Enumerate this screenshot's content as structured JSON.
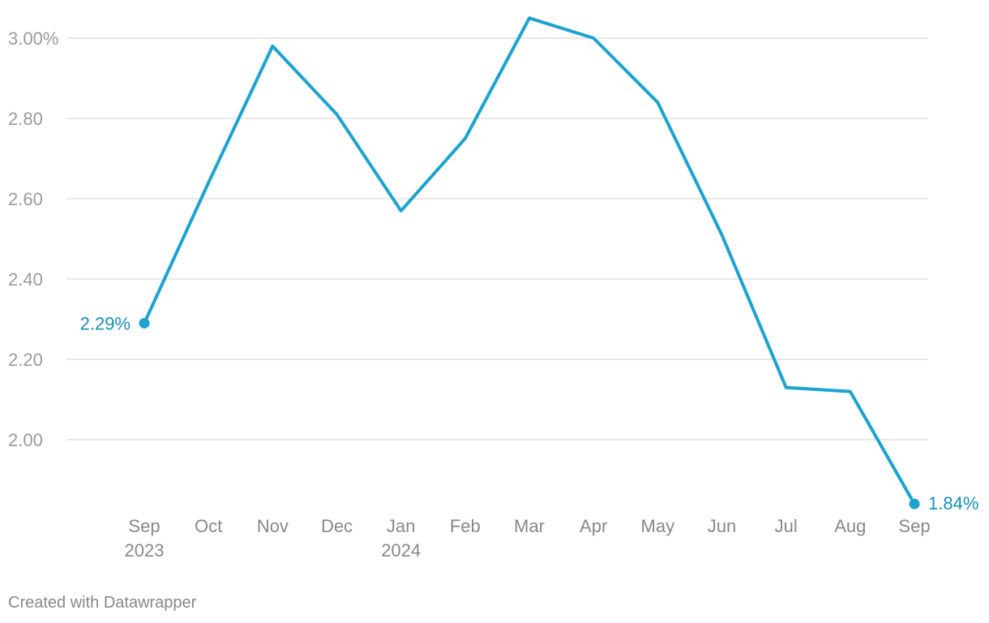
{
  "chart_data": {
    "type": "line",
    "x": [
      "Sep 2023",
      "Oct 2023",
      "Nov 2023",
      "Dec 2023",
      "Jan 2024",
      "Feb 2024",
      "Mar 2024",
      "Apr 2024",
      "May 2024",
      "Jun 2024",
      "Jul 2024",
      "Aug 2024",
      "Sep 2024"
    ],
    "x_tick_labels": [
      {
        "line1": "Sep",
        "line2": "2023"
      },
      {
        "line1": "Oct",
        "line2": ""
      },
      {
        "line1": "Nov",
        "line2": ""
      },
      {
        "line1": "Dec",
        "line2": ""
      },
      {
        "line1": "Jan",
        "line2": "2024"
      },
      {
        "line1": "Feb",
        "line2": ""
      },
      {
        "line1": "Mar",
        "line2": ""
      },
      {
        "line1": "Apr",
        "line2": ""
      },
      {
        "line1": "May",
        "line2": ""
      },
      {
        "line1": "Jun",
        "line2": ""
      },
      {
        "line1": "Jul",
        "line2": ""
      },
      {
        "line1": "Aug",
        "line2": ""
      },
      {
        "line1": "Sep",
        "line2": ""
      }
    ],
    "series": [
      {
        "values": [
          2.29,
          2.64,
          2.98,
          2.81,
          2.57,
          2.75,
          3.05,
          3.0,
          2.84,
          2.51,
          2.13,
          2.12,
          1.84
        ],
        "color": "#1ca3cf"
      }
    ],
    "y_ticks": [
      {
        "value": 3.0,
        "label": "3.00%"
      },
      {
        "value": 2.8,
        "label": "2.80"
      },
      {
        "value": 2.6,
        "label": "2.60"
      },
      {
        "value": 2.4,
        "label": "2.40"
      },
      {
        "value": 2.2,
        "label": "2.20"
      },
      {
        "value": 2.0,
        "label": "2.00"
      }
    ],
    "ylim": [
      1.8,
      3.05
    ],
    "annotations": {
      "start_label": "2.29%",
      "end_label": "1.84%"
    },
    "grid": true,
    "legend": "none"
  },
  "footer": {
    "credit": "Created with Datawrapper"
  }
}
